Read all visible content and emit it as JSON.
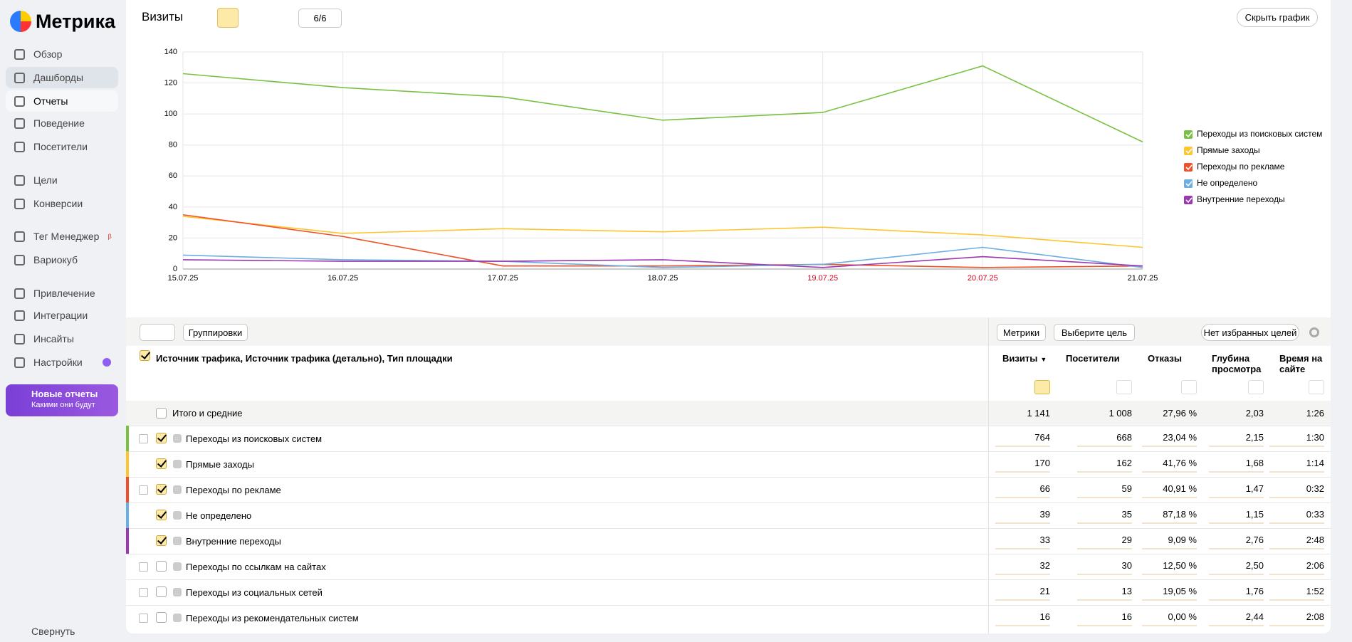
{
  "sidebar": {
    "logo": "Метрика",
    "items": [
      {
        "label": "Обзор"
      },
      {
        "label": "Дашборды"
      },
      {
        "label": "Отчеты"
      },
      {
        "label": "Поведение"
      },
      {
        "label": "Посетители"
      },
      {
        "label": "Цели"
      },
      {
        "label": "Конверсии"
      },
      {
        "label": "Тег Менеджер",
        "badge": "β"
      },
      {
        "label": "Вариокуб"
      },
      {
        "label": "Привлечение"
      },
      {
        "label": "Интеграции"
      },
      {
        "label": "Инсайты"
      },
      {
        "label": "Настройки"
      }
    ],
    "promo": {
      "title": "Новые отчеты",
      "subtitle": "Какими они будут"
    },
    "collapse": "Свернуть"
  },
  "toolbar": {
    "title": "Визиты",
    "annotations": "6/6",
    "hide_chart": "Скрыть график"
  },
  "chart_data": {
    "type": "line",
    "categories": [
      "15.07.25",
      "16.07.25",
      "17.07.25",
      "18.07.25",
      "19.07.25",
      "20.07.25",
      "21.07.25"
    ],
    "category_colors": [
      "#000000",
      "#000000",
      "#000000",
      "#000000",
      "#d0021b",
      "#d0021b",
      "#000000"
    ],
    "ylim": [
      0,
      140
    ],
    "yticks": [
      0,
      20,
      40,
      60,
      80,
      100,
      120,
      140
    ],
    "grid": true,
    "series": [
      {
        "name": "Переходы из поисковых систем",
        "color": "#7ac143",
        "values": [
          126,
          117,
          111,
          96,
          101,
          131,
          82
        ]
      },
      {
        "name": "Прямые заходы",
        "color": "#fdc52f",
        "values": [
          34,
          23,
          26,
          24,
          27,
          22,
          14
        ]
      },
      {
        "name": "Переходы по рекламе",
        "color": "#f0502a",
        "values": [
          35,
          21,
          2,
          2,
          3,
          1,
          2
        ]
      },
      {
        "name": "Не определено",
        "color": "#6aaee4",
        "values": [
          9,
          6,
          5,
          1,
          3,
          14,
          1
        ]
      },
      {
        "name": "Внутренние переходы",
        "color": "#9b39b0",
        "values": [
          6,
          5,
          5,
          6,
          1,
          8,
          2
        ]
      }
    ]
  },
  "table": {
    "toolbar": {
      "groupings": "Группировки",
      "metrics": "Метрики",
      "goal": "Выберите цель",
      "favorites": "Нет избранных целей"
    },
    "dimension": "Источник трафика, Источник трафика (детально), Тип площадки",
    "columns": [
      {
        "label": "Визиты",
        "sort": "▼"
      },
      {
        "label": "Посетители"
      },
      {
        "label": "Отказы"
      },
      {
        "label": "Глубина просмотра"
      },
      {
        "label": "Время на сайте"
      }
    ],
    "total": {
      "label": "Итого и средние",
      "values": [
        "1 141",
        "1 008",
        "27,96 %",
        "2,03",
        "1:26"
      ]
    },
    "rows": [
      {
        "label": "Переходы из поисковых систем",
        "color": "#7ac143",
        "checked": true,
        "expandable": true,
        "values": [
          "764",
          "668",
          "23,04 %",
          "2,15",
          "1:30"
        ]
      },
      {
        "label": "Прямые заходы",
        "color": "#fdc52f",
        "checked": true,
        "expandable": false,
        "values": [
          "170",
          "162",
          "41,76 %",
          "1,68",
          "1:14"
        ]
      },
      {
        "label": "Переходы по рекламе",
        "color": "#f0502a",
        "checked": true,
        "expandable": true,
        "values": [
          "66",
          "59",
          "40,91 %",
          "1,47",
          "0:32"
        ]
      },
      {
        "label": "Не определено",
        "color": "#6aaee4",
        "checked": true,
        "expandable": false,
        "values": [
          "39",
          "35",
          "87,18 %",
          "1,15",
          "0:33"
        ]
      },
      {
        "label": "Внутренние переходы",
        "color": "#9b39b0",
        "checked": true,
        "expandable": false,
        "values": [
          "33",
          "29",
          "9,09 %",
          "2,76",
          "2:48"
        ]
      },
      {
        "label": "Переходы по ссылкам на сайтах",
        "checked": false,
        "expandable": true,
        "values": [
          "32",
          "30",
          "12,50 %",
          "2,50",
          "2:06"
        ]
      },
      {
        "label": "Переходы из социальных сетей",
        "checked": false,
        "expandable": true,
        "values": [
          "21",
          "13",
          "19,05 %",
          "1,76",
          "1:52"
        ]
      },
      {
        "label": "Переходы из рекомендательных систем",
        "checked": false,
        "expandable": true,
        "values": [
          "16",
          "16",
          "0,00 %",
          "2,44",
          "2:08"
        ]
      }
    ]
  }
}
